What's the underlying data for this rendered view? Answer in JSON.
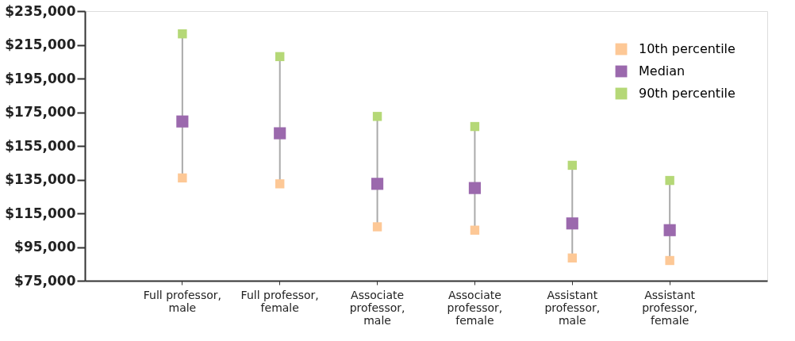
{
  "chart_data": {
    "type": "scatter",
    "categories": [
      "Full professor, male",
      "Full professor, female",
      "Associate professor, male",
      "Associate professor, female",
      "Assistant professor, male",
      "Assistant professor, female"
    ],
    "series": [
      {
        "name": "10th percentile",
        "color": "#fdc896",
        "values": [
          136000,
          132500,
          107000,
          105000,
          88500,
          87000
        ]
      },
      {
        "name": "Median",
        "color": "#9b69ad",
        "values": [
          169500,
          162500,
          132500,
          130000,
          109000,
          105000
        ]
      },
      {
        "name": "90th percentile",
        "color": "#b5d877",
        "values": [
          221500,
          208000,
          172500,
          166500,
          143500,
          134500
        ]
      }
    ],
    "ylim": [
      75000,
      235000
    ],
    "yticks": [
      {
        "value": 75000,
        "label": "$75,000"
      },
      {
        "value": 95000,
        "label": "$95,000"
      },
      {
        "value": 115000,
        "label": "$115,000"
      },
      {
        "value": 135000,
        "label": "$135,000"
      },
      {
        "value": 155000,
        "label": "$155,000"
      },
      {
        "value": 175000,
        "label": "$175,000"
      },
      {
        "value": 195000,
        "label": "$195,000"
      },
      {
        "value": 215000,
        "label": "$215,000"
      },
      {
        "value": 235000,
        "label": "$235,000"
      }
    ],
    "marker": "square",
    "legend": "top right",
    "grid": false
  }
}
